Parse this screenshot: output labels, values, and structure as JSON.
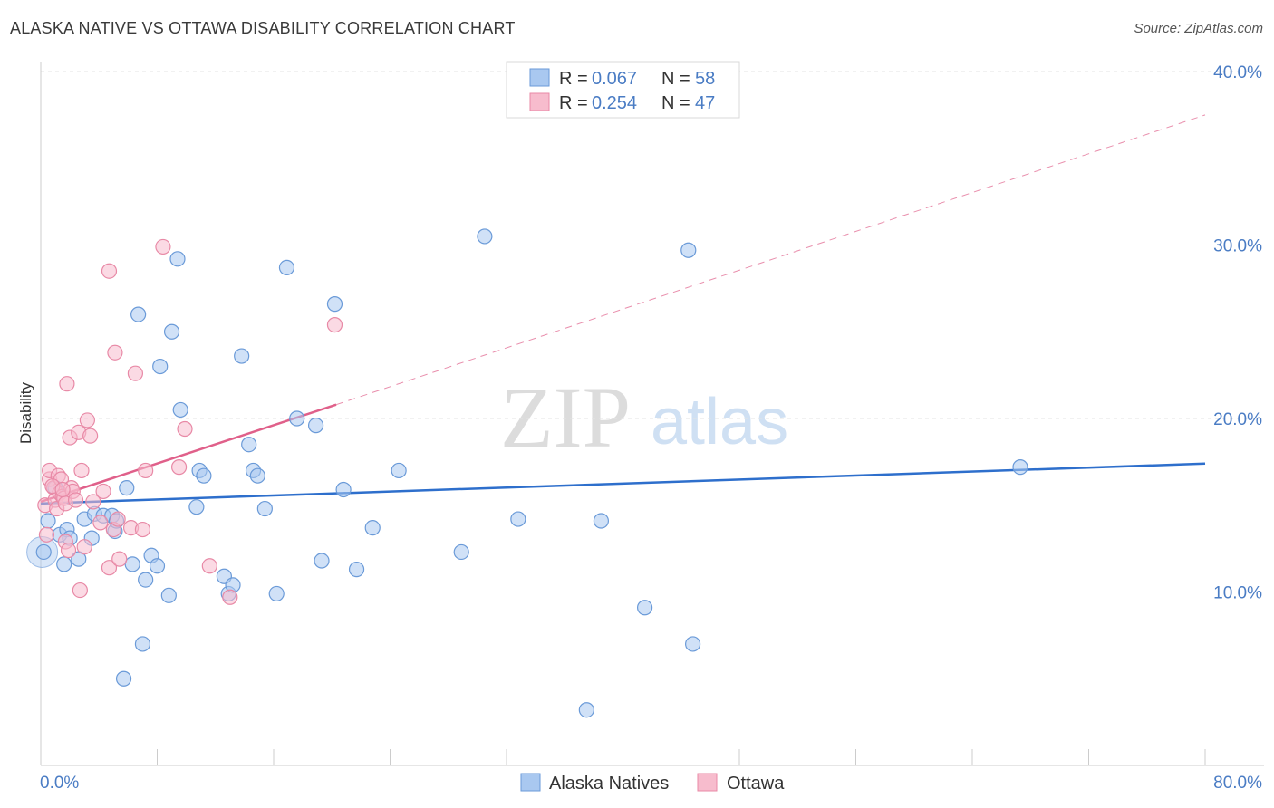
{
  "header": {
    "title": "ALASKA NATIVE VS OTTAWA DISABILITY CORRELATION CHART",
    "source": "Source: ZipAtlas.com"
  },
  "watermark": {
    "zip": "ZIP",
    "atlas": "atlas"
  },
  "legend": {
    "rows": [
      {
        "r_label": "R = ",
        "r_value": "0.067",
        "n_label": "N = ",
        "n_value": "58"
      },
      {
        "r_label": "R = ",
        "r_value": "0.254",
        "n_label": "N = ",
        "n_value": "47"
      }
    ]
  },
  "colors": {
    "blue_fill": "#a9c8f0",
    "blue_stroke": "#6a9ad8",
    "blue_line": "#2e6fcc",
    "pink_fill": "#f7bccd",
    "pink_stroke": "#e889a6",
    "pink_line": "#e0608a",
    "axis_text": "#4a7cc4"
  },
  "chart_data": {
    "type": "scatter",
    "title": "ALASKA NATIVE VS OTTAWA DISABILITY CORRELATION CHART",
    "xlabel": "",
    "ylabel": "Disability",
    "xlim": [
      0,
      80
    ],
    "ylim": [
      0,
      40
    ],
    "x_tick_labels": [
      "0.0%",
      "80.0%"
    ],
    "y_ticks": [
      10,
      20,
      30,
      40
    ],
    "y_tick_labels": [
      "10.0%",
      "20.0%",
      "30.0%",
      "40.0%"
    ],
    "grid": "horizontal dashed",
    "legend_position": "top-center",
    "series": [
      {
        "name": "Alaska Natives",
        "r": 0.067,
        "n": 58,
        "trend": {
          "x0": 0,
          "y0": 15.1,
          "x1": 80,
          "y1": 17.4,
          "style": "solid"
        },
        "points": [
          [
            0.2,
            12.3
          ],
          [
            1.0,
            16.0
          ],
          [
            1.3,
            13.3
          ],
          [
            1.6,
            11.6
          ],
          [
            1.8,
            13.6
          ],
          [
            2.0,
            13.1
          ],
          [
            2.6,
            11.9
          ],
          [
            3.0,
            14.2
          ],
          [
            3.5,
            13.1
          ],
          [
            3.7,
            14.5
          ],
          [
            4.3,
            14.4
          ],
          [
            4.9,
            14.4
          ],
          [
            5.1,
            13.5
          ],
          [
            5.2,
            14.1
          ],
          [
            5.9,
            16.0
          ],
          [
            5.7,
            5.0
          ],
          [
            6.3,
            11.6
          ],
          [
            6.7,
            26.0
          ],
          [
            7.2,
            10.7
          ],
          [
            7.6,
            12.1
          ],
          [
            8.0,
            11.5
          ],
          [
            8.2,
            23.0
          ],
          [
            8.8,
            9.8
          ],
          [
            9.0,
            25.0
          ],
          [
            9.4,
            29.2
          ],
          [
            9.6,
            20.5
          ],
          [
            10.7,
            14.9
          ],
          [
            10.9,
            17.0
          ],
          [
            11.2,
            16.7
          ],
          [
            12.6,
            10.9
          ],
          [
            12.9,
            9.9
          ],
          [
            13.2,
            10.4
          ],
          [
            13.8,
            23.6
          ],
          [
            14.3,
            18.5
          ],
          [
            14.6,
            17.0
          ],
          [
            14.9,
            16.7
          ],
          [
            15.4,
            14.8
          ],
          [
            16.2,
            9.9
          ],
          [
            16.9,
            28.7
          ],
          [
            17.6,
            20.0
          ],
          [
            18.9,
            19.6
          ],
          [
            19.3,
            11.8
          ],
          [
            20.2,
            26.6
          ],
          [
            20.8,
            15.9
          ],
          [
            21.7,
            11.3
          ],
          [
            22.8,
            13.7
          ],
          [
            24.6,
            17.0
          ],
          [
            28.9,
            12.3
          ],
          [
            30.5,
            30.5
          ],
          [
            32.8,
            14.2
          ],
          [
            37.5,
            3.2
          ],
          [
            38.5,
            14.1
          ],
          [
            41.5,
            9.1
          ],
          [
            44.5,
            29.7
          ],
          [
            44.8,
            7.0
          ],
          [
            67.3,
            17.2
          ],
          [
            0.5,
            14.1
          ],
          [
            7.0,
            7.0
          ]
        ]
      },
      {
        "name": "Ottawa",
        "r": 0.254,
        "n": 47,
        "trend": {
          "x0": 0,
          "y0": 15.2,
          "x1": 20.3,
          "y1": 20.8,
          "x2": 80,
          "y2": 37.5,
          "style": "solid then dashed"
        },
        "points": [
          [
            0.3,
            15.0
          ],
          [
            0.6,
            16.5
          ],
          [
            0.6,
            17.0
          ],
          [
            0.9,
            16.0
          ],
          [
            1.0,
            15.3
          ],
          [
            1.1,
            14.8
          ],
          [
            1.2,
            16.7
          ],
          [
            1.3,
            15.7
          ],
          [
            1.4,
            16.5
          ],
          [
            1.5,
            15.5
          ],
          [
            1.6,
            15.4
          ],
          [
            1.7,
            12.9
          ],
          [
            1.7,
            15.1
          ],
          [
            1.8,
            22.0
          ],
          [
            1.9,
            12.4
          ],
          [
            2.0,
            18.9
          ],
          [
            2.1,
            16.0
          ],
          [
            2.2,
            15.8
          ],
          [
            2.4,
            15.3
          ],
          [
            2.6,
            19.2
          ],
          [
            2.7,
            10.1
          ],
          [
            2.8,
            17.0
          ],
          [
            3.0,
            12.6
          ],
          [
            3.2,
            19.9
          ],
          [
            3.4,
            19.0
          ],
          [
            3.6,
            15.2
          ],
          [
            4.1,
            14.0
          ],
          [
            4.3,
            15.8
          ],
          [
            4.7,
            28.5
          ],
          [
            4.7,
            11.4
          ],
          [
            5.0,
            13.6
          ],
          [
            5.1,
            23.8
          ],
          [
            5.3,
            14.2
          ],
          [
            5.4,
            11.9
          ],
          [
            6.2,
            13.7
          ],
          [
            6.5,
            22.6
          ],
          [
            7.0,
            13.6
          ],
          [
            7.2,
            17.0
          ],
          [
            8.4,
            29.9
          ],
          [
            9.5,
            17.2
          ],
          [
            9.9,
            19.4
          ],
          [
            11.6,
            11.5
          ],
          [
            13.0,
            9.7
          ],
          [
            20.2,
            25.4
          ],
          [
            0.4,
            13.3
          ],
          [
            0.8,
            16.1
          ],
          [
            1.5,
            15.9
          ]
        ]
      }
    ]
  },
  "bottom_legend": {
    "items": [
      "Alaska Natives",
      "Ottawa"
    ]
  }
}
